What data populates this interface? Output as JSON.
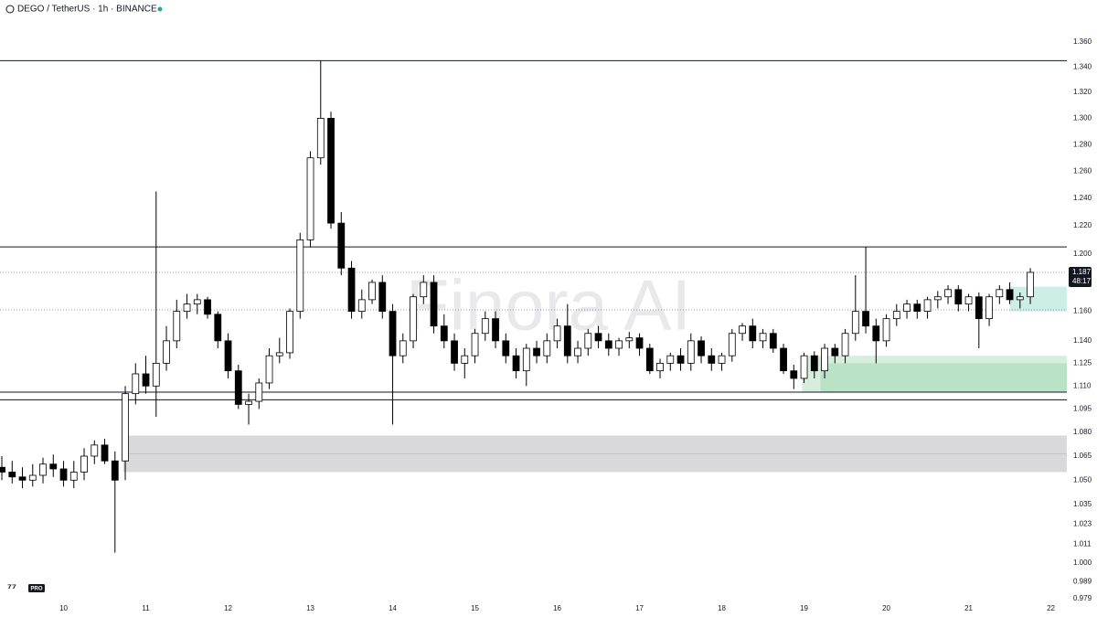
{
  "chart_data": {
    "type": "candlestick",
    "title": "DEGO / TetherUS · 1h · BINANCE",
    "watermark": "Finora AI",
    "badge": "PRO",
    "log_scale": true,
    "up_color": "#ffffff",
    "down_color": "#000000",
    "outline_color": "#000000",
    "open": [
      1.058,
      1.055,
      1.052,
      1.05,
      1.053,
      1.06,
      1.057,
      1.05,
      1.055,
      1.065,
      1.072,
      1.062,
      1.062,
      1.105,
      1.118,
      1.11,
      1.125,
      1.14,
      1.16,
      1.165,
      1.168,
      1.158,
      1.14,
      1.12,
      1.098,
      1.1,
      1.112,
      1.13,
      1.132,
      1.16,
      1.21,
      1.27,
      1.3,
      1.222,
      1.19,
      1.16,
      1.168,
      1.18,
      1.16,
      1.13,
      1.14,
      1.17,
      1.18,
      1.15,
      1.14,
      1.125,
      1.13,
      1.145,
      1.155,
      1.14,
      1.13,
      1.12,
      1.135,
      1.13,
      1.14,
      1.15,
      1.13,
      1.135,
      1.145,
      1.14,
      1.135,
      1.14,
      1.142,
      1.135,
      1.12,
      1.125,
      1.13,
      1.125,
      1.14,
      1.13,
      1.125,
      1.13,
      1.145,
      1.15,
      1.14,
      1.145,
      1.135,
      1.12,
      1.115,
      1.13,
      1.12,
      1.135,
      1.13,
      1.145,
      1.16,
      1.15,
      1.14,
      1.155,
      1.16,
      1.165,
      1.16,
      1.168,
      1.17,
      1.175,
      1.165,
      1.17,
      1.155,
      1.17,
      1.175,
      1.168,
      1.17
    ],
    "high": [
      1.065,
      1.062,
      1.058,
      1.06,
      1.064,
      1.066,
      1.062,
      1.062,
      1.07,
      1.075,
      1.076,
      1.068,
      1.11,
      1.125,
      1.13,
      1.245,
      1.15,
      1.168,
      1.172,
      1.172,
      1.17,
      1.16,
      1.145,
      1.124,
      1.105,
      1.115,
      1.135,
      1.142,
      1.162,
      1.215,
      1.275,
      1.345,
      1.305,
      1.23,
      1.195,
      1.175,
      1.182,
      1.185,
      1.165,
      1.145,
      1.172,
      1.185,
      1.185,
      1.158,
      1.145,
      1.135,
      1.148,
      1.16,
      1.16,
      1.145,
      1.135,
      1.138,
      1.14,
      1.145,
      1.155,
      1.165,
      1.14,
      1.148,
      1.15,
      1.145,
      1.142,
      1.146,
      1.145,
      1.138,
      1.128,
      1.132,
      1.135,
      1.145,
      1.143,
      1.135,
      1.132,
      1.148,
      1.152,
      1.155,
      1.148,
      1.148,
      1.138,
      1.124,
      1.132,
      1.133,
      1.138,
      1.138,
      1.148,
      1.185,
      1.205,
      1.155,
      1.158,
      1.165,
      1.168,
      1.168,
      1.17,
      1.174,
      1.178,
      1.178,
      1.172,
      1.173,
      1.172,
      1.178,
      1.18,
      1.173,
      1.19
    ],
    "low": [
      1.05,
      1.048,
      1.045,
      1.046,
      1.048,
      1.052,
      1.046,
      1.045,
      1.05,
      1.06,
      1.06,
      1.006,
      1.05,
      1.098,
      1.105,
      1.09,
      1.12,
      1.135,
      1.155,
      1.158,
      1.155,
      1.135,
      1.115,
      1.095,
      1.085,
      1.095,
      1.108,
      1.125,
      1.128,
      1.155,
      1.205,
      1.265,
      1.218,
      1.185,
      1.155,
      1.155,
      1.165,
      1.155,
      1.085,
      1.125,
      1.135,
      1.165,
      1.145,
      1.135,
      1.12,
      1.115,
      1.125,
      1.14,
      1.135,
      1.125,
      1.115,
      1.11,
      1.125,
      1.125,
      1.135,
      1.125,
      1.125,
      1.13,
      1.135,
      1.13,
      1.13,
      1.135,
      1.13,
      1.118,
      1.115,
      1.12,
      1.12,
      1.12,
      1.125,
      1.12,
      1.12,
      1.126,
      1.14,
      1.135,
      1.135,
      1.132,
      1.118,
      1.108,
      1.112,
      1.115,
      1.115,
      1.125,
      1.125,
      1.14,
      1.145,
      1.125,
      1.136,
      1.15,
      1.155,
      1.155,
      1.155,
      1.162,
      1.165,
      1.16,
      1.16,
      1.135,
      1.15,
      1.165,
      1.165,
      1.162,
      1.165
    ],
    "close": [
      1.055,
      1.052,
      1.05,
      1.053,
      1.06,
      1.057,
      1.05,
      1.055,
      1.065,
      1.072,
      1.062,
      1.05,
      1.105,
      1.118,
      1.11,
      1.125,
      1.14,
      1.16,
      1.165,
      1.168,
      1.158,
      1.14,
      1.12,
      1.098,
      1.1,
      1.112,
      1.13,
      1.132,
      1.16,
      1.21,
      1.27,
      1.3,
      1.222,
      1.19,
      1.16,
      1.168,
      1.18,
      1.16,
      1.13,
      1.14,
      1.17,
      1.18,
      1.15,
      1.14,
      1.125,
      1.13,
      1.145,
      1.155,
      1.14,
      1.13,
      1.12,
      1.135,
      1.13,
      1.14,
      1.15,
      1.13,
      1.135,
      1.145,
      1.14,
      1.135,
      1.14,
      1.142,
      1.135,
      1.12,
      1.125,
      1.13,
      1.125,
      1.14,
      1.13,
      1.125,
      1.13,
      1.145,
      1.15,
      1.14,
      1.145,
      1.135,
      1.12,
      1.115,
      1.13,
      1.12,
      1.135,
      1.13,
      1.145,
      1.16,
      1.15,
      1.14,
      1.155,
      1.16,
      1.165,
      1.16,
      1.168,
      1.17,
      1.175,
      1.165,
      1.17,
      1.155,
      1.17,
      1.175,
      1.168,
      1.17,
      1.187
    ],
    "xlim": [
      -0.18,
      103.55
    ],
    "xticks": [
      {
        "value": 6,
        "label": "10"
      },
      {
        "value": 14,
        "label": "11"
      },
      {
        "value": 22,
        "label": "12"
      },
      {
        "value": 30,
        "label": "13"
      },
      {
        "value": 38,
        "label": "14"
      },
      {
        "value": 46,
        "label": "15"
      },
      {
        "value": 54,
        "label": "16"
      },
      {
        "value": 62,
        "label": "17"
      },
      {
        "value": 70,
        "label": "18"
      },
      {
        "value": 78,
        "label": "19"
      },
      {
        "value": 86,
        "label": "20"
      },
      {
        "value": 94,
        "label": "21"
      },
      {
        "value": 102,
        "label": "22"
      }
    ],
    "ylim": [
      0.9764,
      1.394
    ],
    "yticks": [
      {
        "value": 1.36,
        "label": "1.360"
      },
      {
        "value": 1.34,
        "label": "1.340"
      },
      {
        "value": 1.32,
        "label": "1.320"
      },
      {
        "value": 1.3,
        "label": "1.300"
      },
      {
        "value": 1.28,
        "label": "1.280"
      },
      {
        "value": 1.26,
        "label": "1.260"
      },
      {
        "value": 1.24,
        "label": "1.240"
      },
      {
        "value": 1.22,
        "label": "1.220"
      },
      {
        "value": 1.2,
        "label": "1.200"
      },
      {
        "value": 1.16,
        "label": "1.160"
      },
      {
        "value": 1.14,
        "label": "1.140"
      },
      1.125,
      {
        "value": 1.11,
        "label": "1.110"
      },
      1.095,
      {
        "value": 1.08,
        "label": "1.080"
      },
      1.065,
      {
        "value": 1.05,
        "label": "1.050"
      },
      1.035,
      1.023,
      1.011,
      {
        "value": 1,
        "label": "1.000"
      },
      0.989,
      0.979
    ],
    "levels": [
      1.345,
      1.205,
      1.106,
      1.101
    ],
    "dotted_levels": [
      1.187,
      1.161
    ],
    "zones": [
      {
        "from": 1.055,
        "to": 1.078,
        "start": 11.8,
        "color": "#d9d9db"
      },
      {
        "from": 1.106,
        "to": 1.13,
        "start": 77.8,
        "color": "#d6eedd"
      },
      {
        "from": 1.106,
        "to": 1.125,
        "start": 79.6,
        "color": "#b9e2c6"
      },
      {
        "from": 1.16,
        "to": 1.177,
        "start": 98.0,
        "color": "#cbeee6"
      }
    ],
    "last_price": 1.187,
    "countdown": "48:17"
  }
}
